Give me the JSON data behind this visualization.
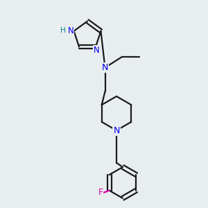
{
  "background_color": "#e8edf0",
  "bond_color": "#1a1a1a",
  "N_color": "#0000ee",
  "H_color": "#008080",
  "F_color": "#dd00aa",
  "line_width": 1.6,
  "figsize": [
    3.0,
    3.0
  ],
  "dpi": 100,
  "xlim": [
    0,
    10
  ],
  "ylim": [
    0,
    10
  ]
}
